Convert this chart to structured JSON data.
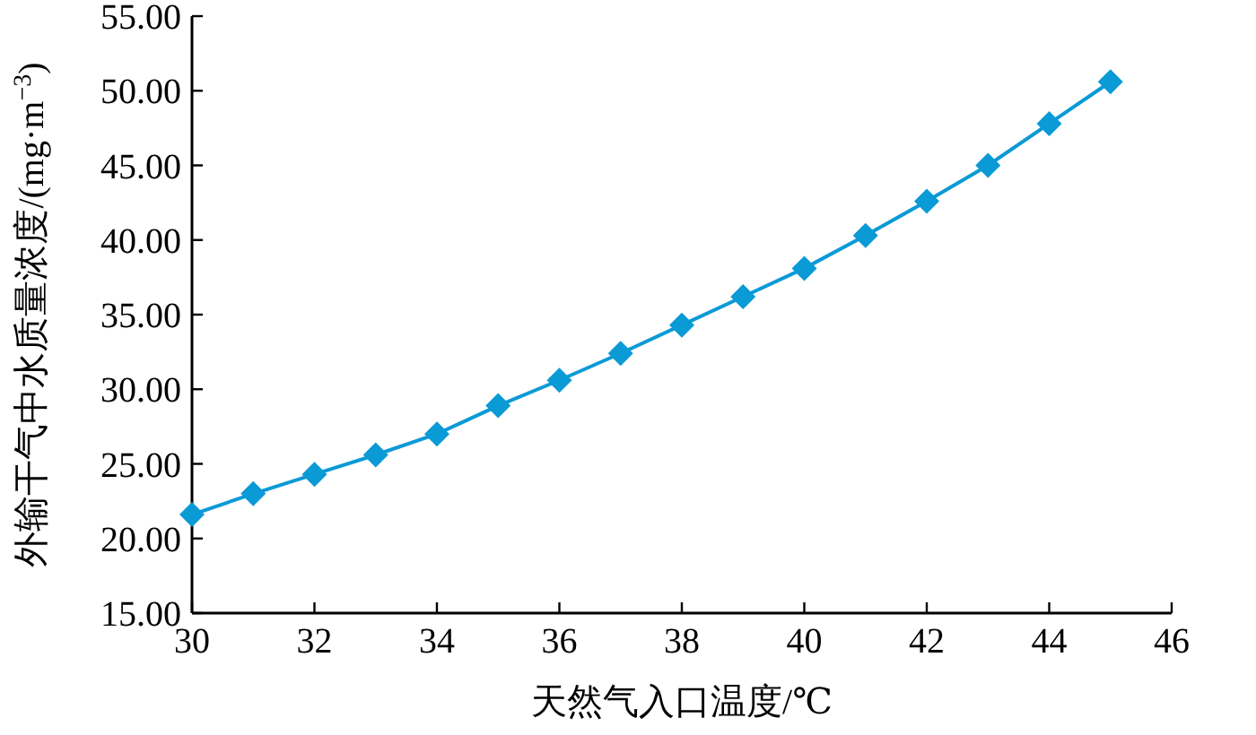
{
  "chart_data": {
    "type": "line",
    "xlabel": "天然气入口温度/℃",
    "ylabel": "外输干气中水质量浓度/(mg·m$^{−3}$)",
    "x": [
      30,
      31,
      32,
      33,
      34,
      35,
      36,
      37,
      38,
      39,
      40,
      41,
      42,
      43,
      44,
      45
    ],
    "series": [
      {
        "color": "#0a9ad6",
        "values": [
          21.6,
          23.0,
          24.3,
          25.6,
          27.0,
          28.9,
          30.6,
          32.4,
          34.3,
          36.2,
          38.1,
          40.3,
          42.6,
          45.0,
          47.8,
          50.6
        ]
      }
    ],
    "marker": "diamond",
    "line_style": "solid",
    "grid": false,
    "xlim": [
      30,
      46
    ],
    "xticks": [
      30,
      32,
      34,
      36,
      38,
      40,
      42,
      44,
      46
    ],
    "ylim": [
      15,
      55
    ],
    "yticks": [
      {
        "value": 15,
        "label": "15.00"
      },
      {
        "value": 20,
        "label": "20.00"
      },
      {
        "value": 25,
        "label": "25.00"
      },
      {
        "value": 30,
        "label": "30.00"
      },
      {
        "value": 35,
        "label": "35.00"
      },
      {
        "value": 40,
        "label": "40.00"
      },
      {
        "value": 45,
        "label": "45.00"
      },
      {
        "value": 50,
        "label": "50.00"
      },
      {
        "value": 55,
        "label": "55.00"
      }
    ]
  }
}
